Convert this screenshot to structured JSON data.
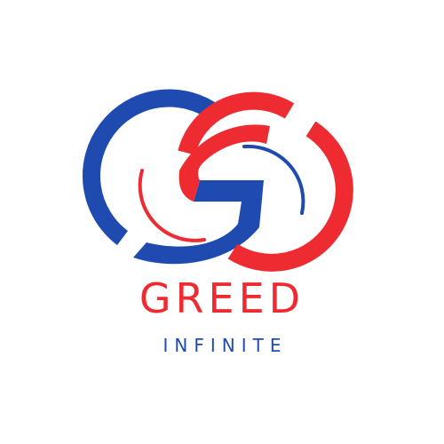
{
  "logo": {
    "name": "GREED",
    "tagline": "INFINITE",
    "colors": {
      "blue": "#1f4bb0",
      "red": "#ee2b31",
      "background": "#ffffff"
    },
    "emblem": "interlocking-blue-red-g-rings-icon"
  }
}
